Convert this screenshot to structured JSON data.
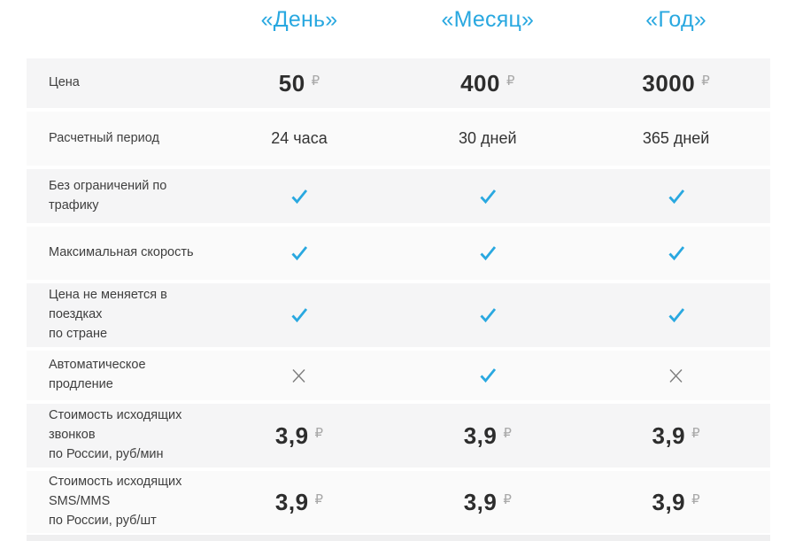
{
  "colors": {
    "accent": "#29a8e0",
    "row_shade_dark": "#f5f5f6",
    "row_shade_light": "#fafafa",
    "cross_gray": "#7d7d7d",
    "ruble_gray": "#a8a8a8"
  },
  "header": {
    "plans": [
      "«День»",
      "«Месяц»",
      "«Год»"
    ]
  },
  "rows": [
    {
      "label": "Цена",
      "type": "price",
      "currency": "₽",
      "values": [
        "50",
        "400",
        "3000"
      ]
    },
    {
      "label": "Расчетный период",
      "type": "text",
      "values": [
        "24 часа",
        "30 дней",
        "365 дней"
      ]
    },
    {
      "label": "Без ограничений по трафику",
      "type": "mark",
      "values": [
        "check",
        "check",
        "check"
      ]
    },
    {
      "label": "Максимальная скорость",
      "type": "mark",
      "values": [
        "check",
        "check",
        "check"
      ]
    },
    {
      "label": "Цена не меняется в поездках\nпо стране",
      "type": "mark",
      "values": [
        "check",
        "check",
        "check"
      ]
    },
    {
      "label": "Автоматическое продление",
      "type": "mark",
      "values": [
        "cross",
        "check",
        "cross"
      ]
    },
    {
      "label": "Стоимость исходящих звонков\nпо России, руб/мин",
      "type": "price",
      "currency": "₽",
      "values": [
        "3,9",
        "3,9",
        "3,9"
      ]
    },
    {
      "label": "Стоимость исходящих SMS/MMS\nпо России, руб/шт",
      "type": "price",
      "currency": "₽",
      "values": [
        "3,9",
        "3,9",
        "3,9"
      ]
    }
  ]
}
